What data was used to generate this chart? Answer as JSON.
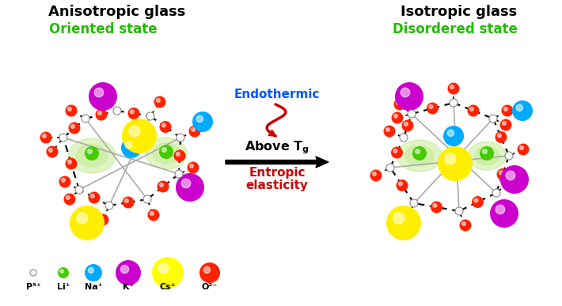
{
  "bg_color": "#ffffff",
  "left_title": "Anisotropic glass",
  "right_title": "Isotropic glass",
  "left_subtitle": "Oriented state",
  "right_subtitle": "Disordered state",
  "endothermic": "Endothermic",
  "above_tg": "Above T",
  "entropic1": "Entropic",
  "entropic2": "elasticity",
  "legend_labels": [
    "P⁵⁺",
    "Li⁺",
    "Na⁺",
    "K⁺",
    "Cs⁺",
    "O²⁻"
  ],
  "legend_colors": [
    "#bbbbbb",
    "#44cc00",
    "#00aaff",
    "#cc00cc",
    "#ffff00",
    "#ff2200"
  ],
  "legend_sizes": [
    4,
    7,
    11,
    16,
    20,
    13
  ],
  "col_P": "#cccccc",
  "col_Li": "#44cc00",
  "col_Na": "#00aaff",
  "col_K": "#cc00cc",
  "col_Cs": "#ffee00",
  "col_O": "#ff2200",
  "col_bond": "#111111",
  "col_gray_bond": "#aaaaaa",
  "col_green_glow": "#99dd44",
  "col_blue": "#0055ff",
  "col_red": "#cc0000",
  "col_green_text": "#22bb00"
}
